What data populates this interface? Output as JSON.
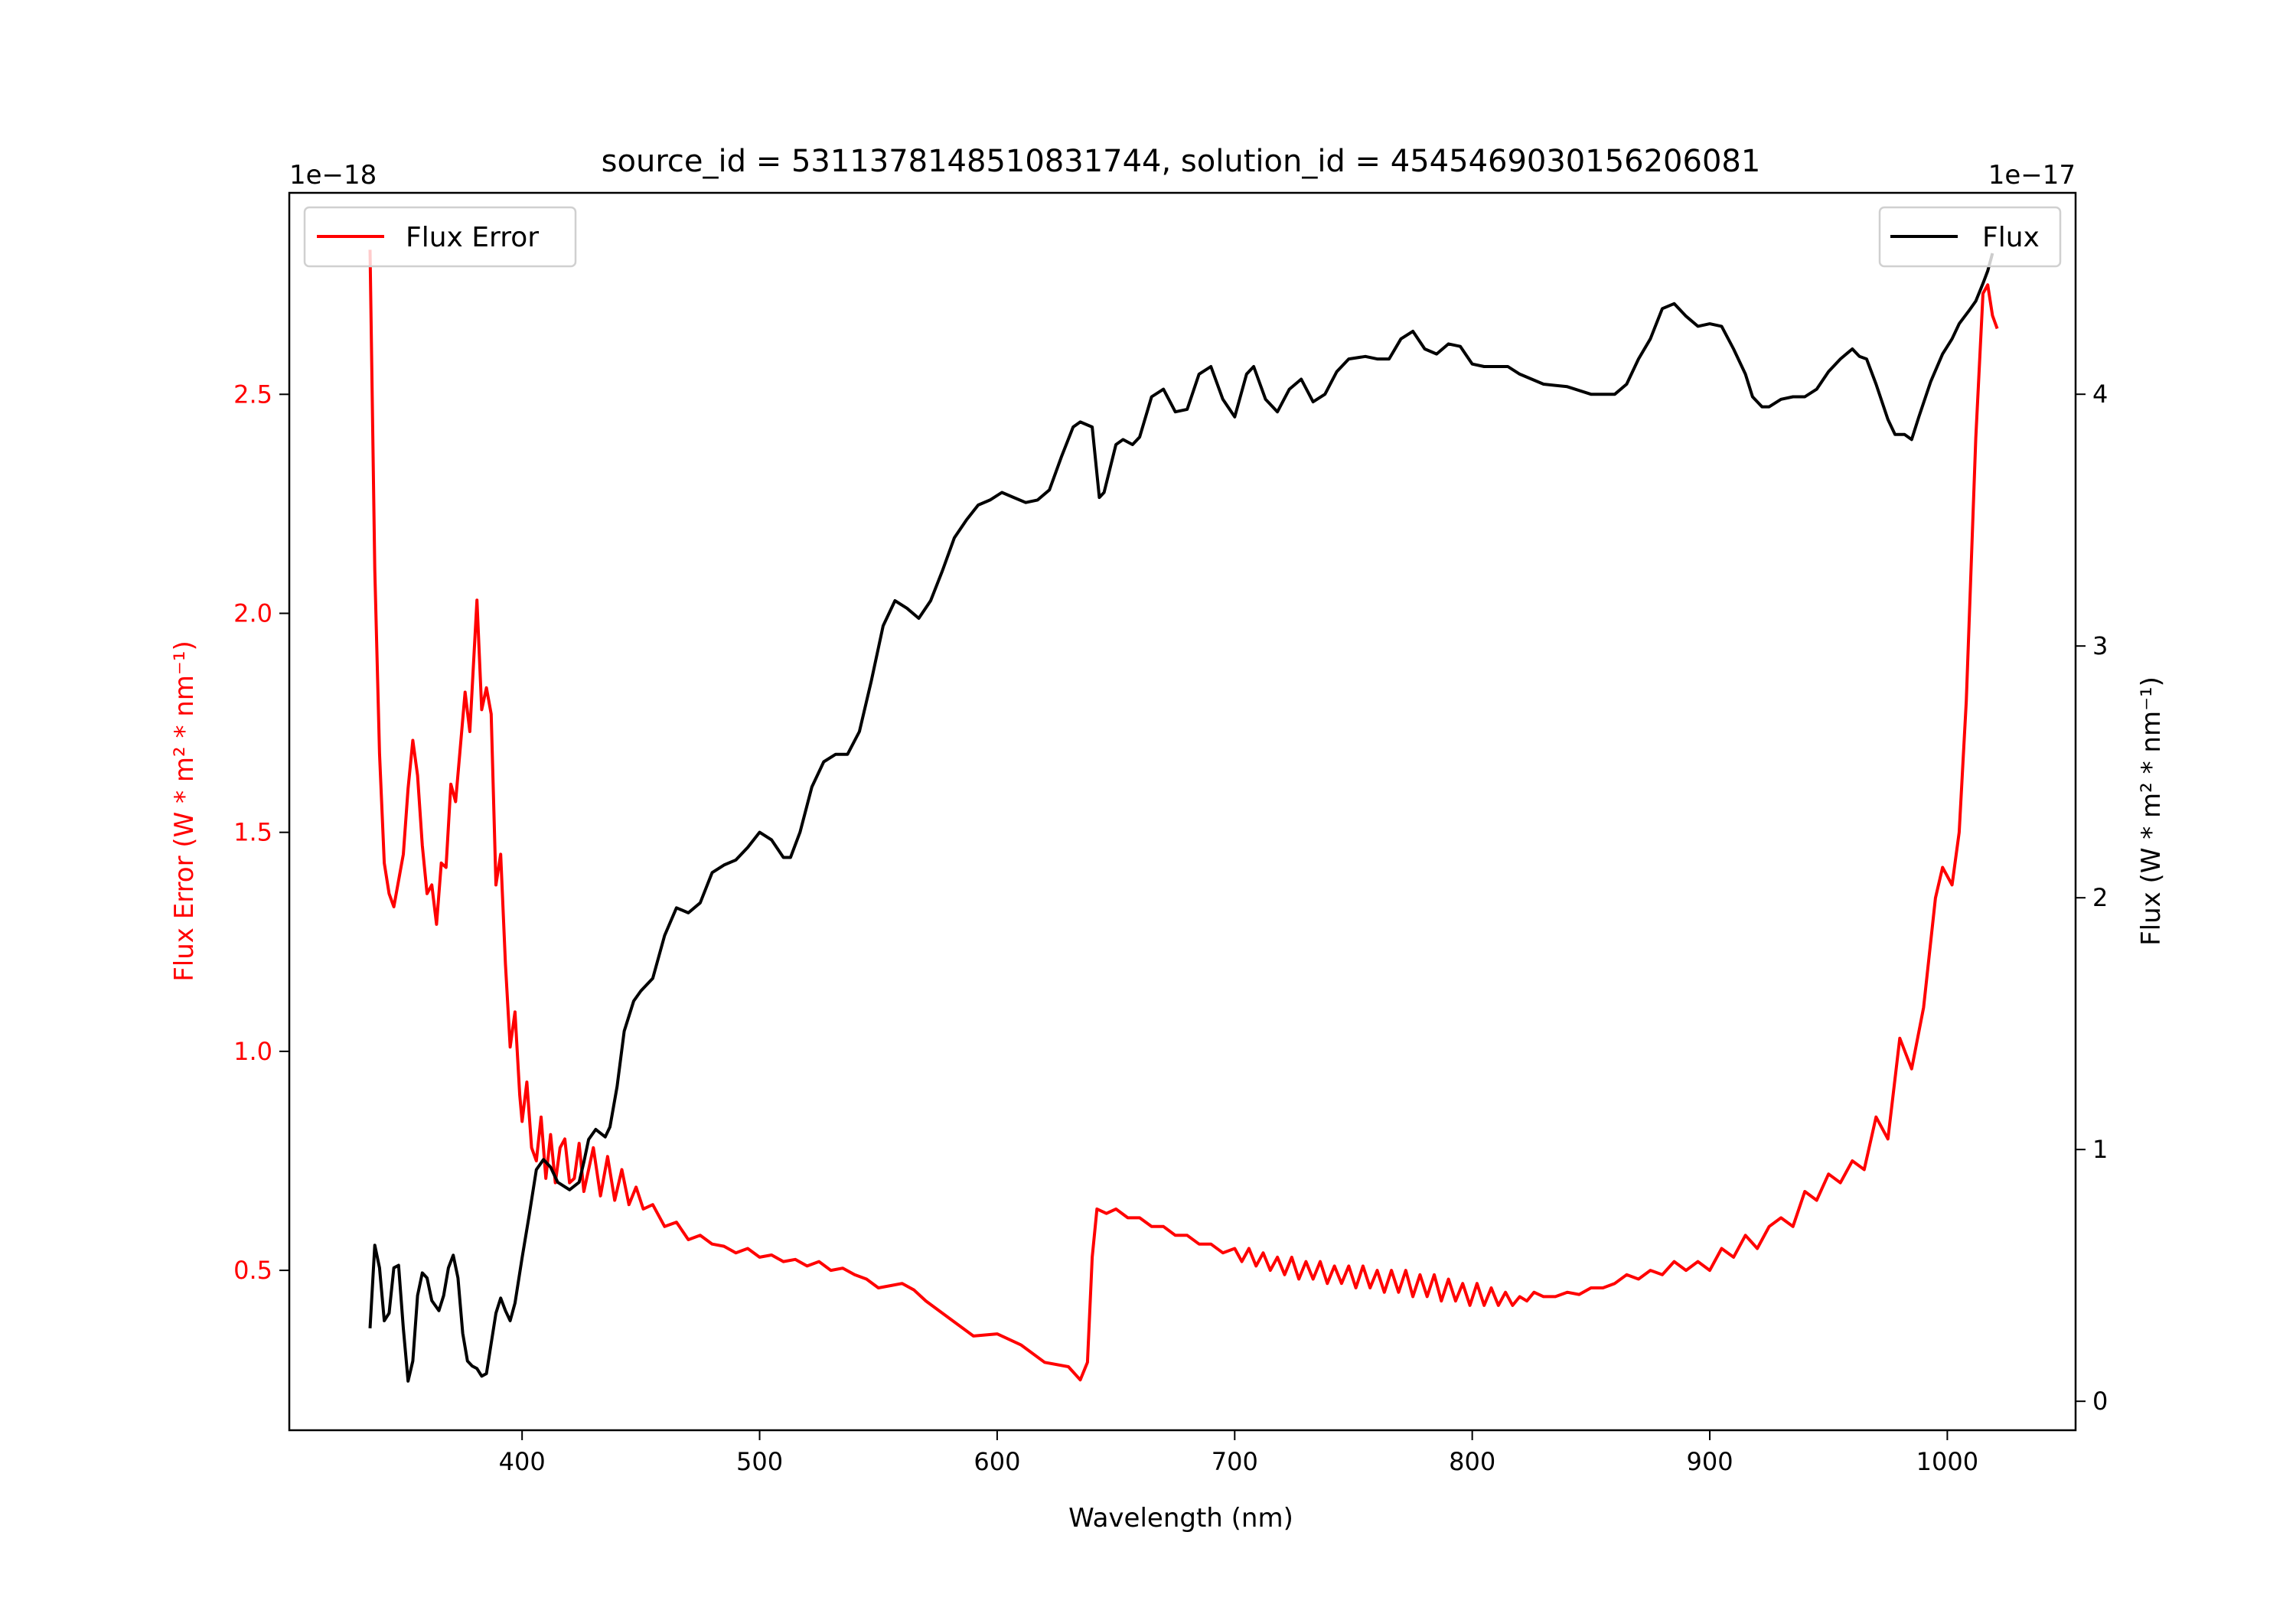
{
  "chart_data": {
    "type": "line",
    "title": "source_id = 5311378148510831744, solution_id = 4545469030156206081",
    "xlabel": "Wavelength (nm)",
    "xlim": [
      302,
      1054
    ],
    "xticks": [
      400,
      500,
      600,
      700,
      800,
      900,
      1000
    ],
    "left_axis": {
      "label": "Flux Error (W * m² * nm⁻¹)",
      "offset_label": "1e−18",
      "ylim": [
        0.135,
        2.96
      ],
      "ticks": [
        0.5,
        1.0,
        1.5,
        2.0,
        2.5
      ],
      "tick_labels": [
        "0.5",
        "1.0",
        "1.5",
        "2.0",
        "2.5"
      ],
      "color": "#ff0000"
    },
    "right_axis": {
      "label": "Flux (W * m² * nm⁻¹)",
      "offset_label": "1e−17",
      "ylim": [
        -0.115,
        4.8
      ],
      "ticks": [
        0,
        1,
        2,
        3,
        4
      ],
      "tick_labels": [
        "0",
        "1",
        "2",
        "3",
        "4"
      ],
      "color": "#000000"
    },
    "legends": [
      {
        "label": "Flux Error",
        "color": "#ff0000",
        "placement": "upper-left"
      },
      {
        "label": "Flux",
        "color": "#000000",
        "placement": "upper-right"
      }
    ],
    "series": [
      {
        "name": "Flux Error",
        "axis": "left",
        "color": "#ff0000",
        "x": [
          336,
          338,
          340,
          342,
          344,
          346,
          350,
          352,
          354,
          356,
          358,
          360,
          362,
          364,
          366,
          368,
          370,
          372,
          376,
          378,
          381,
          383,
          385,
          387,
          389,
          391,
          393,
          395,
          397,
          399,
          400,
          402,
          404,
          406,
          408,
          410,
          412,
          414,
          416,
          418,
          420,
          422,
          424,
          426,
          430,
          433,
          436,
          439,
          442,
          445,
          448,
          451,
          455,
          460,
          465,
          470,
          475,
          480,
          485,
          490,
          495,
          500,
          505,
          510,
          515,
          520,
          525,
          530,
          535,
          540,
          545,
          550,
          555,
          560,
          565,
          570,
          580,
          590,
          600,
          610,
          620,
          630,
          635,
          638,
          640,
          642,
          646,
          650,
          655,
          660,
          665,
          670,
          675,
          680,
          685,
          690,
          695,
          700,
          703,
          706,
          709,
          712,
          715,
          718,
          721,
          724,
          727,
          730,
          733,
          736,
          739,
          742,
          745,
          748,
          751,
          754,
          757,
          760,
          763,
          766,
          769,
          772,
          775,
          778,
          781,
          784,
          787,
          790,
          793,
          796,
          799,
          802,
          805,
          808,
          811,
          814,
          817,
          820,
          823,
          826,
          830,
          835,
          840,
          845,
          850,
          855,
          860,
          865,
          870,
          875,
          880,
          885,
          890,
          895,
          900,
          905,
          910,
          915,
          920,
          925,
          930,
          935,
          940,
          945,
          950,
          955,
          960,
          965,
          970,
          975,
          980,
          985,
          990,
          995,
          998,
          1002,
          1005,
          1008,
          1012,
          1015,
          1017,
          1019,
          1021
        ],
        "y": [
          2.83,
          2.1,
          1.68,
          1.43,
          1.36,
          1.33,
          1.45,
          1.6,
          1.71,
          1.63,
          1.47,
          1.36,
          1.38,
          1.29,
          1.43,
          1.42,
          1.61,
          1.57,
          1.82,
          1.73,
          2.03,
          1.78,
          1.83,
          1.77,
          1.38,
          1.45,
          1.2,
          1.01,
          1.09,
          0.9,
          0.84,
          0.93,
          0.78,
          0.75,
          0.85,
          0.71,
          0.81,
          0.7,
          0.78,
          0.8,
          0.7,
          0.71,
          0.79,
          0.68,
          0.78,
          0.67,
          0.76,
          0.66,
          0.73,
          0.65,
          0.69,
          0.64,
          0.65,
          0.6,
          0.61,
          0.57,
          0.58,
          0.56,
          0.555,
          0.54,
          0.55,
          0.53,
          0.535,
          0.52,
          0.525,
          0.51,
          0.52,
          0.5,
          0.505,
          0.49,
          0.48,
          0.46,
          0.465,
          0.47,
          0.455,
          0.43,
          0.39,
          0.35,
          0.355,
          0.33,
          0.29,
          0.28,
          0.25,
          0.29,
          0.53,
          0.64,
          0.63,
          0.64,
          0.62,
          0.62,
          0.6,
          0.6,
          0.58,
          0.58,
          0.56,
          0.56,
          0.54,
          0.55,
          0.52,
          0.55,
          0.51,
          0.54,
          0.5,
          0.53,
          0.49,
          0.53,
          0.48,
          0.52,
          0.48,
          0.52,
          0.47,
          0.51,
          0.47,
          0.51,
          0.46,
          0.51,
          0.46,
          0.5,
          0.45,
          0.5,
          0.45,
          0.5,
          0.44,
          0.49,
          0.44,
          0.49,
          0.43,
          0.48,
          0.43,
          0.47,
          0.42,
          0.47,
          0.42,
          0.46,
          0.42,
          0.45,
          0.42,
          0.44,
          0.43,
          0.45,
          0.44,
          0.44,
          0.45,
          0.445,
          0.46,
          0.46,
          0.47,
          0.49,
          0.48,
          0.5,
          0.49,
          0.52,
          0.5,
          0.52,
          0.5,
          0.55,
          0.53,
          0.58,
          0.55,
          0.6,
          0.62,
          0.6,
          0.68,
          0.66,
          0.72,
          0.7,
          0.75,
          0.73,
          0.85,
          0.8,
          1.03,
          0.96,
          1.1,
          1.35,
          1.42,
          1.38,
          1.5,
          1.8,
          2.4,
          2.73,
          2.75,
          2.68,
          2.65
        ]
      },
      {
        "name": "Flux",
        "axis": "right",
        "color": "#000000",
        "x": [
          336,
          338,
          340,
          342,
          344,
          346,
          348,
          350,
          352,
          354,
          356,
          358,
          360,
          362,
          365,
          367,
          369,
          371,
          373,
          375,
          377,
          379,
          381,
          383,
          385,
          387,
          389,
          391,
          393,
          395,
          397,
          400,
          403,
          406,
          409,
          412,
          415,
          420,
          424,
          426,
          428,
          431,
          435,
          437,
          440,
          443,
          447,
          450,
          455,
          460,
          465,
          470,
          475,
          480,
          485,
          490,
          495,
          500,
          505,
          510,
          513,
          517,
          522,
          527,
          532,
          537,
          542,
          547,
          552,
          557,
          562,
          567,
          572,
          577,
          582,
          587,
          592,
          597,
          602,
          607,
          612,
          617,
          622,
          627,
          632,
          635,
          640,
          643,
          645,
          650,
          653,
          657,
          660,
          665,
          670,
          675,
          680,
          685,
          690,
          695,
          700,
          705,
          708,
          713,
          718,
          723,
          728,
          733,
          738,
          743,
          748,
          755,
          760,
          765,
          770,
          775,
          780,
          785,
          790,
          795,
          800,
          805,
          810,
          815,
          820,
          830,
          840,
          850,
          860,
          865,
          870,
          875,
          880,
          885,
          890,
          895,
          900,
          905,
          910,
          915,
          918,
          922,
          925,
          930,
          935,
          940,
          945,
          950,
          955,
          960,
          963,
          966,
          970,
          975,
          978,
          982,
          985,
          988,
          993,
          998,
          1002,
          1005,
          1009,
          1012,
          1015,
          1017,
          1019
        ],
        "y": [
          0.29,
          0.62,
          0.53,
          0.32,
          0.35,
          0.53,
          0.54,
          0.29,
          0.08,
          0.16,
          0.42,
          0.51,
          0.49,
          0.4,
          0.36,
          0.42,
          0.53,
          0.58,
          0.49,
          0.27,
          0.16,
          0.14,
          0.13,
          0.1,
          0.11,
          0.23,
          0.35,
          0.41,
          0.36,
          0.32,
          0.39,
          0.57,
          0.74,
          0.92,
          0.96,
          0.93,
          0.87,
          0.84,
          0.87,
          0.95,
          1.04,
          1.08,
          1.05,
          1.09,
          1.25,
          1.47,
          1.59,
          1.63,
          1.68,
          1.85,
          1.96,
          1.94,
          1.98,
          2.1,
          2.13,
          2.15,
          2.2,
          2.26,
          2.23,
          2.16,
          2.16,
          2.26,
          2.44,
          2.54,
          2.57,
          2.57,
          2.66,
          2.86,
          3.08,
          3.18,
          3.15,
          3.11,
          3.18,
          3.3,
          3.43,
          3.5,
          3.56,
          3.58,
          3.61,
          3.59,
          3.57,
          3.58,
          3.62,
          3.75,
          3.87,
          3.89,
          3.87,
          3.59,
          3.61,
          3.8,
          3.82,
          3.8,
          3.83,
          3.99,
          4.02,
          3.93,
          3.94,
          4.08,
          4.11,
          3.98,
          3.91,
          4.08,
          4.11,
          3.98,
          3.93,
          4.02,
          4.06,
          3.97,
          4.0,
          4.09,
          4.14,
          4.15,
          4.14,
          4.14,
          4.22,
          4.25,
          4.18,
          4.16,
          4.2,
          4.19,
          4.12,
          4.11,
          4.11,
          4.11,
          4.08,
          4.04,
          4.03,
          4.0,
          4.0,
          4.04,
          4.14,
          4.22,
          4.34,
          4.36,
          4.31,
          4.27,
          4.28,
          4.27,
          4.18,
          4.08,
          3.99,
          3.95,
          3.95,
          3.98,
          3.99,
          3.99,
          4.02,
          4.09,
          4.14,
          4.18,
          4.15,
          4.14,
          4.04,
          3.9,
          3.84,
          3.84,
          3.82,
          3.91,
          4.05,
          4.16,
          4.22,
          4.28,
          4.33,
          4.37,
          4.44,
          4.49,
          4.56
        ]
      }
    ]
  }
}
